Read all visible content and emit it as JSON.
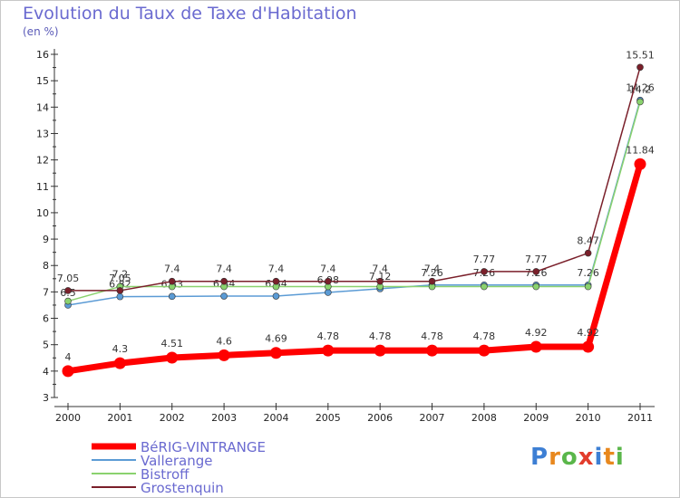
{
  "header": {
    "title": "Evolution du Taux de Taxe d'Habitation",
    "unit": "(en %)"
  },
  "logo": {
    "text": "Proxiti",
    "letter_colors": [
      "#3d7fd4",
      "#e8881e",
      "#5ab64a",
      "#e23c2c",
      "#3d7fd4",
      "#e8881e",
      "#5ab64a"
    ]
  },
  "chart_data": {
    "type": "line",
    "title": "Evolution du Taux de Taxe d'Habitation",
    "ylabel": "(en %)",
    "xlabel": "",
    "x": [
      "2000",
      "2001",
      "2002",
      "2003",
      "2004",
      "2005",
      "2006",
      "2007",
      "2008",
      "2009",
      "2010",
      "2011"
    ],
    "ylim": [
      3,
      16
    ],
    "yticks": [
      3,
      4,
      5,
      6,
      7,
      8,
      9,
      10,
      11,
      12,
      13,
      14,
      15,
      16
    ],
    "grid": false,
    "legend_position": "bottom-left",
    "series": [
      {
        "name": "Vallerange",
        "color": "#5b9bd5",
        "values": [
          6.5,
          6.82,
          6.83,
          6.84,
          6.84,
          6.98,
          7.12,
          7.26,
          7.26,
          7.26,
          7.26,
          14.26
        ],
        "labels": [
          "6.5",
          "6.82",
          "6.83",
          "6.84",
          "6.84",
          "6.98",
          "7.12",
          "7.26",
          "7.26",
          "7.26",
          "7.26",
          "14.26"
        ]
      },
      {
        "name": "Bistroff",
        "color": "#8ad26e",
        "values": [
          6.65,
          7.2,
          7.2,
          7.2,
          7.2,
          7.2,
          7.2,
          7.2,
          7.2,
          7.2,
          7.2,
          14.2
        ],
        "labels": [
          "",
          "7.2",
          "",
          "",
          "",
          "",
          "",
          "",
          "",
          "",
          "",
          "14.2"
        ]
      },
      {
        "name": "Grostenquin",
        "color": "#7a1f2a",
        "values": [
          7.05,
          7.05,
          7.4,
          7.4,
          7.4,
          7.4,
          7.4,
          7.4,
          7.77,
          7.77,
          8.47,
          15.51
        ],
        "labels": [
          "7.05",
          "7.05",
          "7.4",
          "7.4",
          "7.4",
          "7.4",
          "7.4",
          "7.4",
          "7.77",
          "7.77",
          "8.47",
          "15.51"
        ]
      },
      {
        "name": "BéRIG-VINTRANGE",
        "color": "#ff0000",
        "values": [
          4,
          4.3,
          4.51,
          4.6,
          4.69,
          4.78,
          4.78,
          4.78,
          4.78,
          4.92,
          4.92,
          11.84
        ],
        "labels": [
          "4",
          "4.3",
          "4.51",
          "4.6",
          "4.69",
          "4.78",
          "4.78",
          "4.78",
          "4.78",
          "4.92",
          "4.92",
          "11.84"
        ]
      }
    ],
    "legend": [
      "BéRIG-VINTRANGE",
      "Vallerange",
      "Bistroff",
      "Grostenquin"
    ]
  }
}
